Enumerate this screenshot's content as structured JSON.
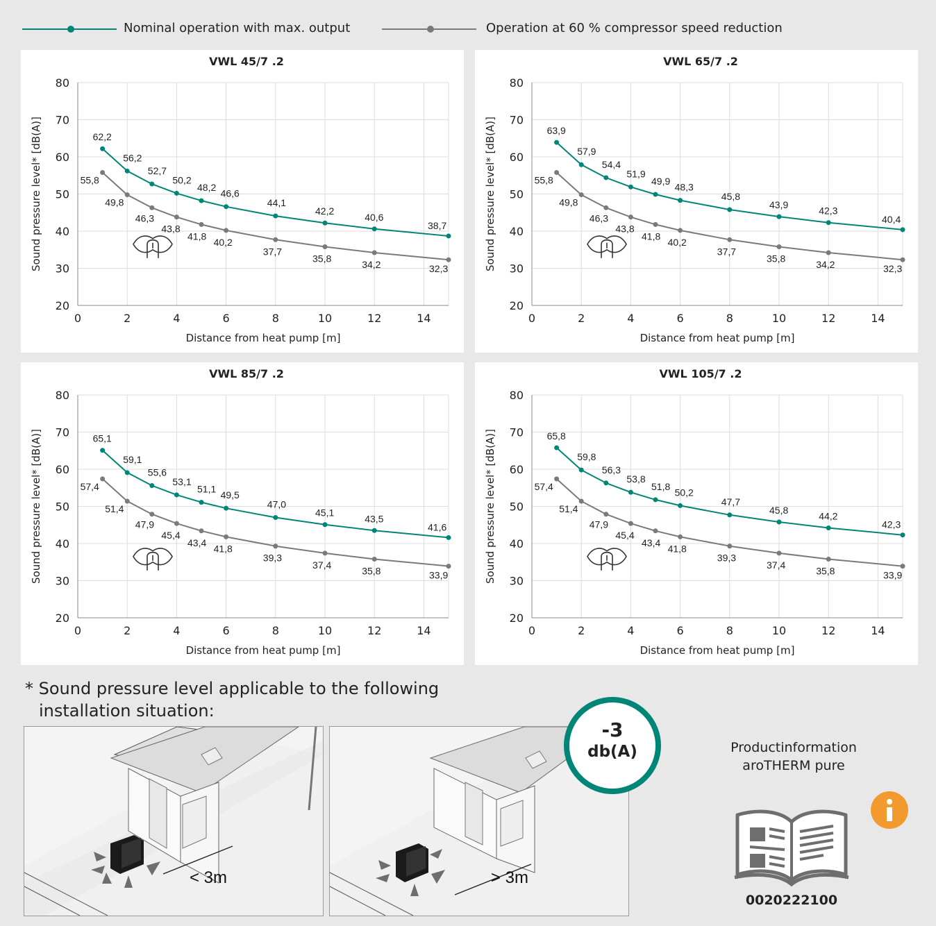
{
  "legend": {
    "nominal": "Nominal operation with max. output",
    "reduced": "Operation at 60 % compressor speed reduction"
  },
  "colors": {
    "nominal": "#008577",
    "reduced": "#7a7a7a",
    "grid": "#dddddd",
    "badge": "#008577",
    "info": "#f39a2e"
  },
  "chart_data": [
    {
      "type": "line",
      "title": "VWL 45/7 .2",
      "xlabel": "Distance from heat pump [m]",
      "ylabel": "Sound pressure level* [dB(A)]",
      "xlim": [
        0,
        15
      ],
      "ylim": [
        20,
        80
      ],
      "xticks": [
        0,
        2,
        4,
        6,
        8,
        10,
        12,
        14
      ],
      "yticks": [
        20,
        30,
        40,
        50,
        60,
        70,
        80
      ],
      "x": [
        1,
        2,
        3,
        4,
        5,
        6,
        8,
        10,
        12,
        15
      ],
      "series": [
        {
          "key": "nominal",
          "values": [
            62.2,
            56.2,
            52.7,
            50.2,
            48.2,
            46.6,
            44.1,
            42.2,
            40.6,
            38.7
          ],
          "labels": [
            "62,2",
            "56,2",
            "52,7",
            "50,2",
            "48,2",
            "46,6",
            "44,1",
            "42,2",
            "40,6",
            "38,7"
          ]
        },
        {
          "key": "reduced",
          "values": [
            55.8,
            49.8,
            46.3,
            43.8,
            41.8,
            40.2,
            37.7,
            35.8,
            34.2,
            32.3
          ],
          "labels": [
            "55,8",
            "49,8",
            "46,3",
            "43,8",
            "41,8",
            "40,2",
            "37,7",
            "35,8",
            "34,2",
            "32,3"
          ]
        }
      ]
    },
    {
      "type": "line",
      "title": "VWL 65/7 .2",
      "xlabel": "Distance from heat pump [m]",
      "ylabel": "Sound pressure level* [dB(A)]",
      "xlim": [
        0,
        15
      ],
      "ylim": [
        20,
        80
      ],
      "xticks": [
        0,
        2,
        4,
        6,
        8,
        10,
        12,
        14
      ],
      "yticks": [
        20,
        30,
        40,
        50,
        60,
        70,
        80
      ],
      "x": [
        1,
        2,
        3,
        4,
        5,
        6,
        8,
        10,
        12,
        15
      ],
      "series": [
        {
          "key": "nominal",
          "values": [
            63.9,
            57.9,
            54.4,
            51.9,
            49.9,
            48.3,
            45.8,
            43.9,
            42.3,
            40.4
          ],
          "labels": [
            "63,9",
            "57,9",
            "54,4",
            "51,9",
            "49,9",
            "48,3",
            "45,8",
            "43,9",
            "42,3",
            "40,4"
          ]
        },
        {
          "key": "reduced",
          "values": [
            55.8,
            49.8,
            46.3,
            43.8,
            41.8,
            40.2,
            37.7,
            35.8,
            34.2,
            32.3
          ],
          "labels": [
            "55,8",
            "49,8",
            "46,3",
            "43,8",
            "41,8",
            "40,2",
            "37,7",
            "35,8",
            "34,2",
            "32,3"
          ]
        }
      ]
    },
    {
      "type": "line",
      "title": "VWL 85/7 .2",
      "xlabel": "Distance from heat pump [m]",
      "ylabel": "Sound pressure level* [dB(A)]",
      "xlim": [
        0,
        15
      ],
      "ylim": [
        20,
        80
      ],
      "xticks": [
        0,
        2,
        4,
        6,
        8,
        10,
        12,
        14
      ],
      "yticks": [
        20,
        30,
        40,
        50,
        60,
        70,
        80
      ],
      "x": [
        1,
        2,
        3,
        4,
        5,
        6,
        8,
        10,
        12,
        15
      ],
      "series": [
        {
          "key": "nominal",
          "values": [
            65.1,
            59.1,
            55.6,
            53.1,
            51.1,
            49.5,
            47.0,
            45.1,
            43.5,
            41.6
          ],
          "labels": [
            "65,1",
            "59,1",
            "55,6",
            "53,1",
            "51,1",
            "49,5",
            "47,0",
            "45,1",
            "43,5",
            "41,6"
          ]
        },
        {
          "key": "reduced",
          "values": [
            57.4,
            51.4,
            47.9,
            45.4,
            43.4,
            41.8,
            39.3,
            37.4,
            35.8,
            33.9
          ],
          "labels": [
            "57,4",
            "51,4",
            "47,9",
            "45,4",
            "43,4",
            "41,8",
            "39,3",
            "37,4",
            "35,8",
            "33,9"
          ]
        }
      ]
    },
    {
      "type": "line",
      "title": "VWL 105/7 .2",
      "xlabel": "Distance from heat pump [m]",
      "ylabel": "Sound pressure level* [dB(A)]",
      "xlim": [
        0,
        15
      ],
      "ylim": [
        20,
        80
      ],
      "xticks": [
        0,
        2,
        4,
        6,
        8,
        10,
        12,
        14
      ],
      "yticks": [
        20,
        30,
        40,
        50,
        60,
        70,
        80
      ],
      "x": [
        1,
        2,
        3,
        4,
        5,
        6,
        8,
        10,
        12,
        15
      ],
      "series": [
        {
          "key": "nominal",
          "values": [
            65.8,
            59.8,
            56.3,
            53.8,
            51.8,
            50.2,
            47.7,
            45.8,
            44.2,
            42.3
          ],
          "labels": [
            "65,8",
            "59,8",
            "56,3",
            "53,8",
            "51,8",
            "50,2",
            "47,7",
            "45,8",
            "44,2",
            "42,3"
          ]
        },
        {
          "key": "reduced",
          "values": [
            57.4,
            51.4,
            47.9,
            45.4,
            43.4,
            41.8,
            39.3,
            37.4,
            35.8,
            33.9
          ],
          "labels": [
            "57,4",
            "51,4",
            "47,9",
            "45,4",
            "43,4",
            "41,8",
            "39,3",
            "37,4",
            "35,8",
            "33,9"
          ]
        }
      ]
    }
  ],
  "footnote": {
    "line1": "* Sound pressure level applicable to the following",
    "line2": "installation situation:"
  },
  "scenes": [
    {
      "distance_label": "< 3m"
    },
    {
      "distance_label": "> 3m"
    }
  ],
  "badge": {
    "value": "-3",
    "unit": "db(A)"
  },
  "product_info": {
    "line1": "Productinformation",
    "line2": "aroTHERM pure",
    "doc_number": "0020222100",
    "info_icon": "info-icon"
  }
}
